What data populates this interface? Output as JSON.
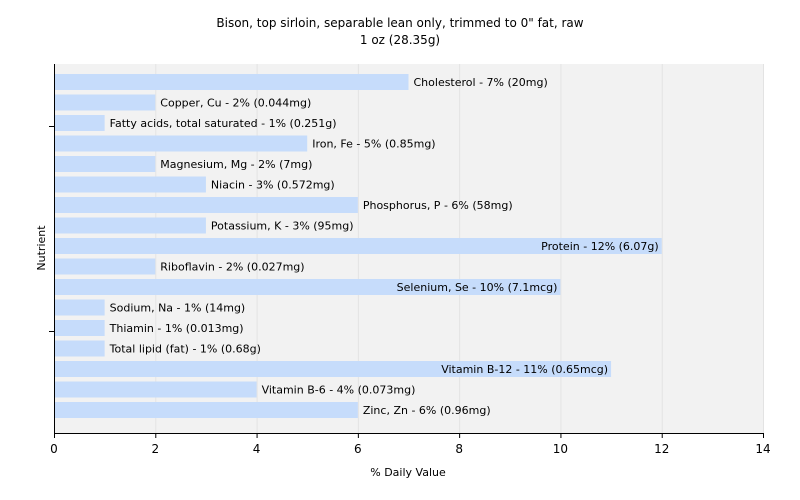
{
  "chart_data": {
    "type": "bar",
    "orientation": "horizontal",
    "title": "Bison, top sirloin, separable lean only, trimmed to 0\" fat, raw",
    "subtitle": "1 oz (28.35g)",
    "xlabel": "% Daily Value",
    "ylabel": "Nutrient",
    "xlim": [
      0,
      14
    ],
    "xticks": [
      0,
      2,
      4,
      6,
      8,
      10,
      12,
      14
    ],
    "grid": true,
    "bar_color": "#c6dcfb",
    "plot_background": "#f2f2f2",
    "categories": [
      "Cholesterol",
      "Copper, Cu",
      "Fatty acids, total saturated",
      "Iron, Fe",
      "Magnesium, Mg",
      "Niacin",
      "Phosphorus, P",
      "Potassium, K",
      "Protein",
      "Riboflavin",
      "Selenium, Se",
      "Sodium, Na",
      "Thiamin",
      "Total lipid (fat)",
      "Vitamin B-12",
      "Vitamin B-6",
      "Zinc, Zn"
    ],
    "values": [
      7,
      2,
      1,
      5,
      2,
      3,
      6,
      3,
      12,
      2,
      10,
      1,
      1,
      1,
      11,
      4,
      6
    ],
    "labels": [
      "Cholesterol - 7% (20mg)",
      "Copper, Cu - 2% (0.044mg)",
      "Fatty acids, total saturated - 1% (0.251g)",
      "Iron, Fe - 5% (0.85mg)",
      "Magnesium, Mg - 2% (7mg)",
      "Niacin - 3% (0.572mg)",
      "Phosphorus, P - 6% (58mg)",
      "Potassium, K - 3% (95mg)",
      "Protein - 12% (6.07g)",
      "Riboflavin - 2% (0.027mg)",
      "Selenium, Se - 10% (7.1mcg)",
      "Sodium, Na - 1% (14mg)",
      "Thiamin - 1% (0.013mg)",
      "Total lipid (fat) - 1% (0.68g)",
      "Vitamin B-12 - 11% (0.65mcg)",
      "Vitamin B-6 - 4% (0.073mg)",
      "Zinc, Zn - 6% (0.96mg)"
    ]
  }
}
